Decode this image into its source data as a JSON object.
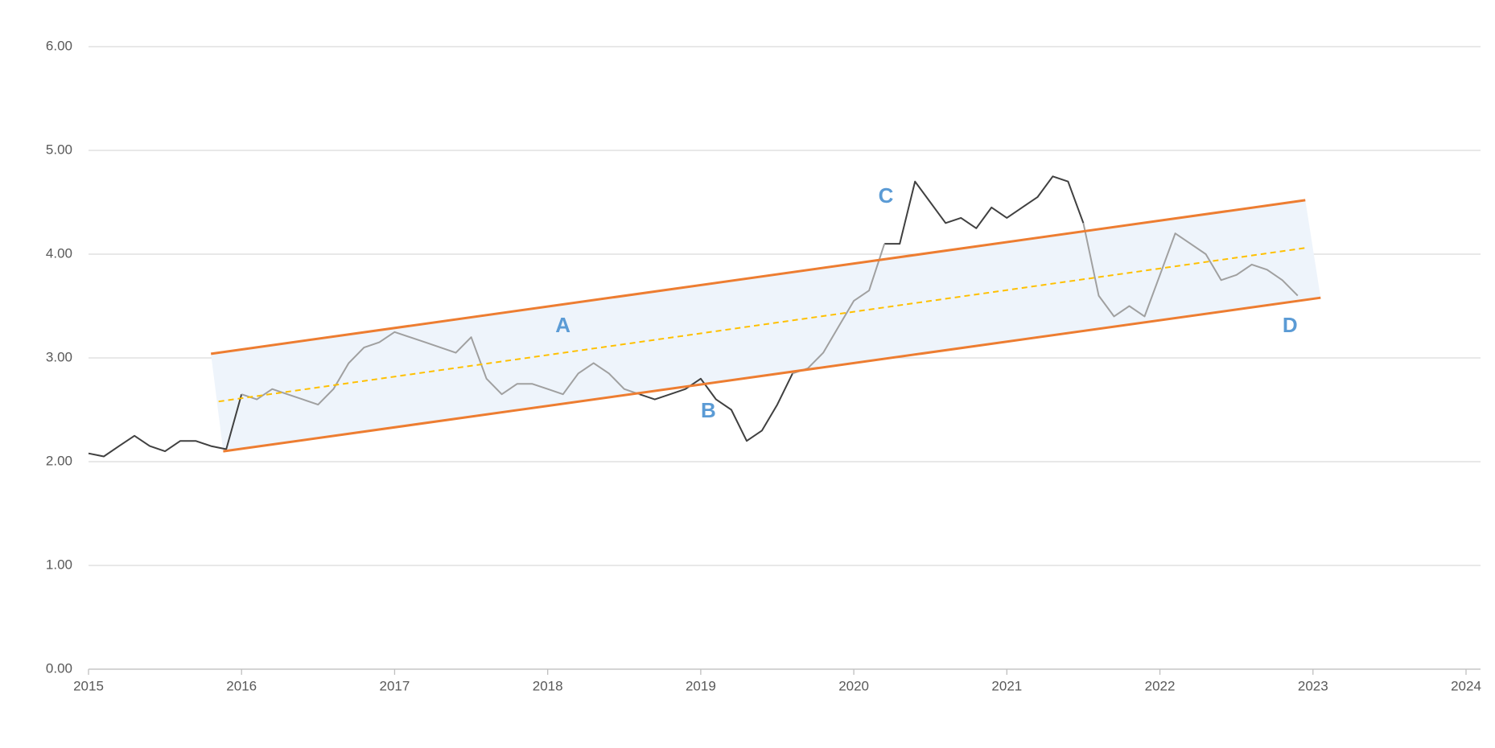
{
  "chart_data": {
    "type": "line",
    "x": [
      2015,
      2015.1,
      2015.2,
      2015.3,
      2015.4,
      2015.5,
      2015.6,
      2015.7,
      2015.8,
      2015.9,
      2016,
      2016.1,
      2016.2,
      2016.3,
      2016.4,
      2016.5,
      2016.6,
      2016.7,
      2016.8,
      2016.9,
      2017,
      2017.1,
      2017.2,
      2017.3,
      2017.4,
      2017.5,
      2017.6,
      2017.7,
      2017.8,
      2017.9,
      2018,
      2018.1,
      2018.2,
      2018.3,
      2018.4,
      2018.5,
      2018.6,
      2018.7,
      2018.8,
      2018.9,
      2019,
      2019.1,
      2019.2,
      2019.3,
      2019.4,
      2019.5,
      2019.6,
      2019.7,
      2019.8,
      2019.9,
      2020,
      2020.1,
      2020.2,
      2020.3,
      2020.4,
      2020.5,
      2020.6,
      2020.7,
      2020.8,
      2020.9,
      2021,
      2021.1,
      2021.2,
      2021.3,
      2021.4,
      2021.5,
      2021.6,
      2021.7,
      2021.8,
      2021.9,
      2022,
      2022.1,
      2022.2,
      2022.3,
      2022.4,
      2022.5,
      2022.6,
      2022.7,
      2022.8,
      2022.9
    ],
    "series": [
      {
        "color": "#404040",
        "values": [
          2.08,
          2.05,
          2.15,
          2.25,
          2.15,
          2.1,
          2.2,
          2.2,
          2.15,
          2.12,
          2.65,
          null,
          null,
          null,
          null,
          null,
          null,
          null,
          null,
          null,
          null,
          null,
          null,
          null,
          null,
          null,
          null,
          null,
          null,
          null,
          null,
          null,
          null,
          null,
          null,
          null,
          2.65,
          2.6,
          2.65,
          2.7,
          2.8,
          2.6,
          2.5,
          2.2,
          2.3,
          2.55,
          2.85,
          null,
          null,
          null,
          null,
          null,
          4.1,
          4.1,
          4.7,
          4.5,
          4.3,
          4.35,
          4.25,
          4.45,
          4.35,
          4.45,
          4.55,
          4.75,
          4.7,
          4.3,
          null,
          null,
          null,
          null,
          null,
          null,
          null,
          null,
          null,
          null,
          null,
          null,
          null,
          null
        ]
      },
      {
        "color": "#a0a0a0",
        "values": [
          null,
          null,
          null,
          null,
          null,
          null,
          null,
          null,
          null,
          null,
          2.65,
          2.6,
          2.7,
          2.65,
          2.6,
          2.55,
          2.7,
          2.95,
          3.1,
          3.15,
          3.25,
          3.2,
          3.15,
          3.1,
          3.05,
          3.2,
          2.8,
          2.65,
          2.75,
          2.75,
          2.7,
          2.65,
          2.85,
          2.95,
          2.85,
          2.7,
          2.65,
          null,
          null,
          null,
          null,
          null,
          null,
          null,
          null,
          null,
          2.85,
          2.9,
          3.05,
          3.3,
          3.55,
          3.65,
          4.1,
          null,
          null,
          null,
          null,
          null,
          null,
          null,
          null,
          null,
          null,
          null,
          null,
          4.3,
          3.6,
          3.4,
          3.5,
          3.4,
          3.8,
          4.2,
          4.1,
          4.0,
          3.75,
          3.8,
          3.9,
          3.85,
          3.75,
          3.6
        ]
      }
    ],
    "trend_lines": [
      {
        "color": "#ed7d31",
        "dashed": false,
        "x": [
          2015.8,
          2022.95
        ],
        "y": [
          3.04,
          4.52
        ]
      },
      {
        "color": "#ed7d31",
        "dashed": false,
        "x": [
          2015.88,
          2023.05
        ],
        "y": [
          2.1,
          3.58
        ]
      },
      {
        "color": "#ffc000",
        "dashed": true,
        "x": [
          2015.85,
          2022.95
        ],
        "y": [
          2.58,
          4.06
        ]
      }
    ],
    "band_color": "#eef4fb",
    "annotations": [
      {
        "text": "A",
        "x": 2018.1,
        "y": 3.3
      },
      {
        "text": "B",
        "x": 2019.05,
        "y": 2.48
      },
      {
        "text": "C",
        "x": 2020.21,
        "y": 4.55
      },
      {
        "text": "D",
        "x": 2022.85,
        "y": 3.3
      }
    ],
    "xlim": [
      2015,
      2024
    ],
    "ylim": [
      0,
      6
    ],
    "xticks": [
      2015,
      2016,
      2017,
      2018,
      2019,
      2020,
      2021,
      2022,
      2023,
      2024
    ],
    "yticks": [
      {
        "value": 0,
        "label": "0.00"
      },
      {
        "value": 1,
        "label": "1.00"
      },
      {
        "value": 2,
        "label": "2.00"
      },
      {
        "value": 3,
        "label": "3.00"
      },
      {
        "value": 4,
        "label": "4.00"
      },
      {
        "value": 5,
        "label": "5.00"
      },
      {
        "value": 6,
        "label": "6.00"
      }
    ],
    "grid": true
  }
}
